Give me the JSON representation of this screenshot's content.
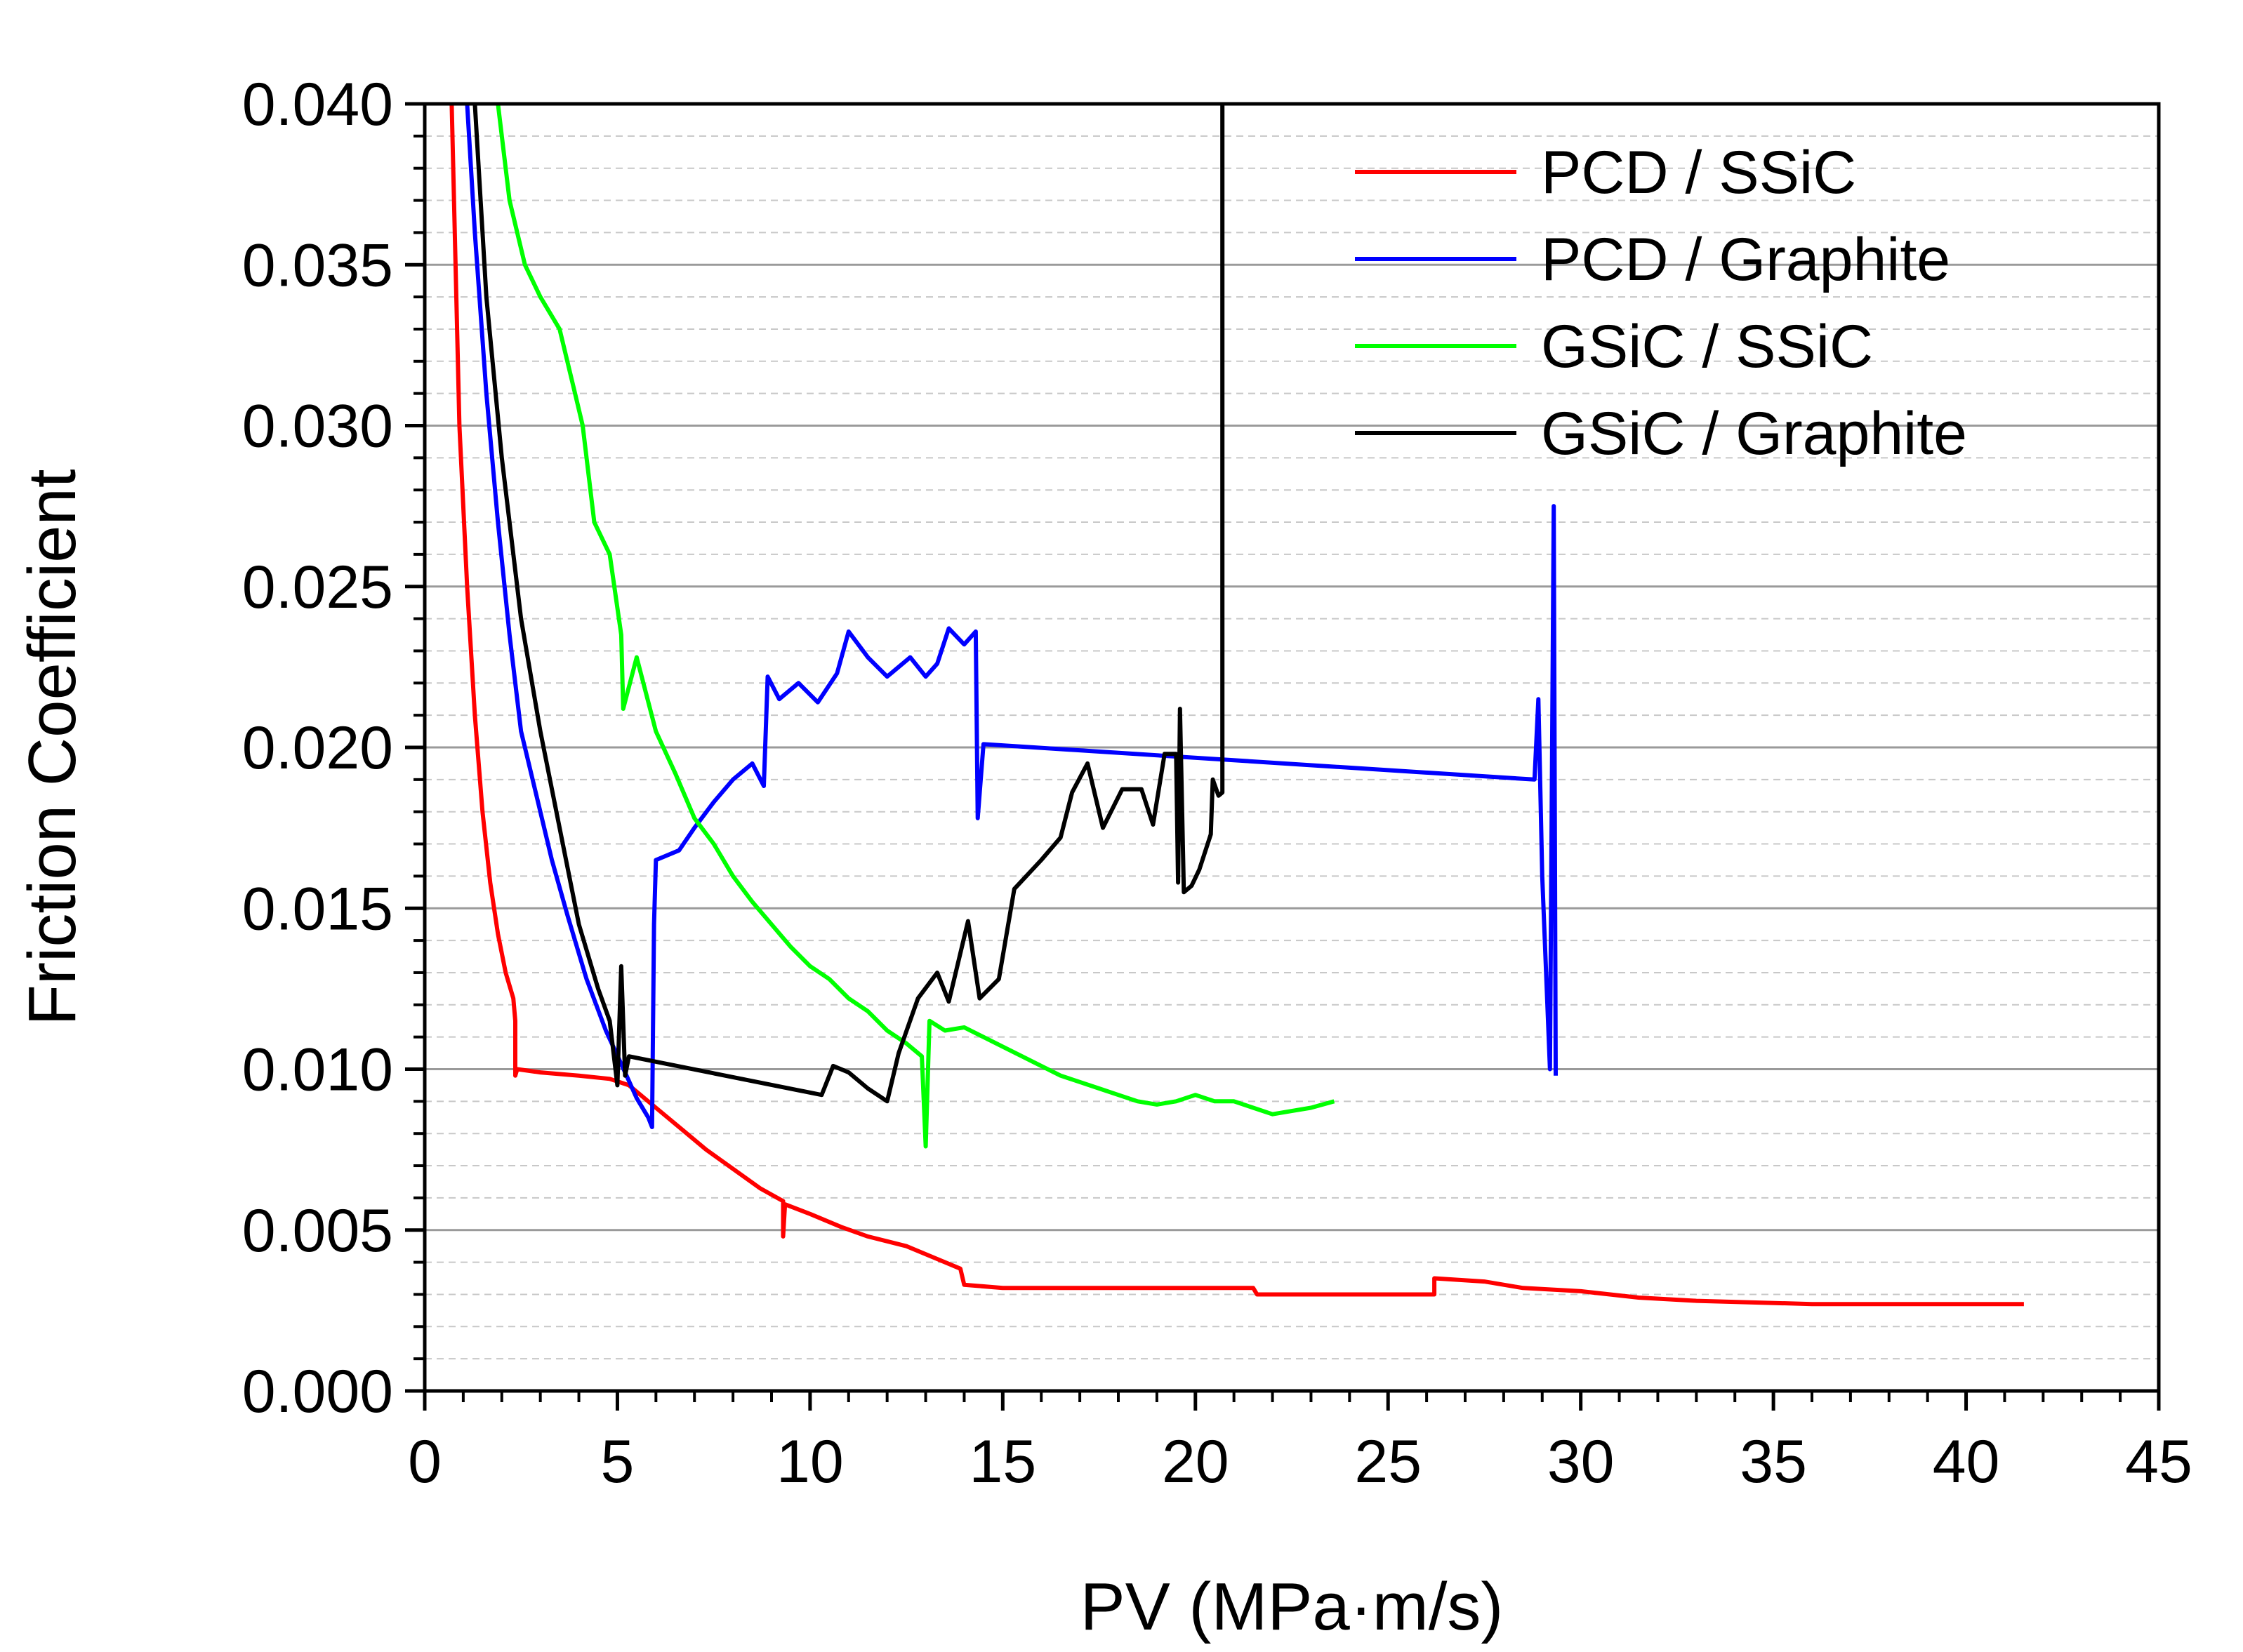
{
  "chart_data": {
    "type": "line",
    "title": "",
    "xlabel": "PV (MPa·m/s)",
    "ylabel": "Friction Coefficient",
    "xlim": [
      0,
      45
    ],
    "ylim": [
      0,
      0.04
    ],
    "x_ticks": [
      "0",
      "5",
      "10",
      "15",
      "20",
      "25",
      "30",
      "35",
      "40",
      "45"
    ],
    "y_ticks": [
      "0.000",
      "0.005",
      "0.010",
      "0.015",
      "0.020",
      "0.025",
      "0.030",
      "0.035",
      "0.040"
    ],
    "grid": true,
    "legend_position": "top-right",
    "series": [
      {
        "name": "PCD / SSiC",
        "color": "#ff0000",
        "points": [
          [
            0.7,
            0.04
          ],
          [
            0.9,
            0.03
          ],
          [
            1.1,
            0.025
          ],
          [
            1.3,
            0.021
          ],
          [
            1.5,
            0.018
          ],
          [
            1.7,
            0.0158
          ],
          [
            1.9,
            0.0142
          ],
          [
            2.1,
            0.013
          ],
          [
            2.3,
            0.0122
          ],
          [
            2.35,
            0.0115
          ],
          [
            2.35,
            0.0098
          ],
          [
            2.4,
            0.01
          ],
          [
            3.0,
            0.0099
          ],
          [
            4.0,
            0.0098
          ],
          [
            4.8,
            0.0097
          ],
          [
            5.3,
            0.0095
          ],
          [
            6.0,
            0.0088
          ],
          [
            6.7,
            0.0081
          ],
          [
            7.3,
            0.0075
          ],
          [
            8.0,
            0.0069
          ],
          [
            8.7,
            0.0063
          ],
          [
            9.3,
            0.0059
          ],
          [
            9.3,
            0.0048
          ],
          [
            9.35,
            0.0058
          ],
          [
            10.0,
            0.0055
          ],
          [
            10.8,
            0.0051
          ],
          [
            11.5,
            0.0048
          ],
          [
            12.5,
            0.0045
          ],
          [
            13.3,
            0.0041
          ],
          [
            13.9,
            0.0038
          ],
          [
            14.0,
            0.0033
          ],
          [
            15.0,
            0.0032
          ],
          [
            17.0,
            0.0032
          ],
          [
            21.5,
            0.0032
          ],
          [
            21.6,
            0.003
          ],
          [
            26.2,
            0.003
          ],
          [
            26.2,
            0.0035
          ],
          [
            27.5,
            0.0034
          ],
          [
            28.5,
            0.0032
          ],
          [
            30.0,
            0.0031
          ],
          [
            31.5,
            0.0029
          ],
          [
            33.0,
            0.0028
          ],
          [
            36.0,
            0.0027
          ],
          [
            41.5,
            0.0027
          ]
        ]
      },
      {
        "name": "PCD / Graphite",
        "color": "#0000ff",
        "points": [
          [
            1.1,
            0.04
          ],
          [
            1.3,
            0.036
          ],
          [
            1.6,
            0.031
          ],
          [
            1.9,
            0.027
          ],
          [
            2.2,
            0.0235
          ],
          [
            2.5,
            0.0205
          ],
          [
            2.9,
            0.0185
          ],
          [
            3.3,
            0.0165
          ],
          [
            3.7,
            0.0148
          ],
          [
            4.2,
            0.0128
          ],
          [
            4.7,
            0.0112
          ],
          [
            5.2,
            0.0099
          ],
          [
            5.5,
            0.0091
          ],
          [
            5.8,
            0.0085
          ],
          [
            5.9,
            0.0082
          ],
          [
            5.95,
            0.0145
          ],
          [
            6.0,
            0.0165
          ],
          [
            6.6,
            0.0168
          ],
          [
            7.0,
            0.0175
          ],
          [
            7.5,
            0.0183
          ],
          [
            8.0,
            0.019
          ],
          [
            8.5,
            0.0195
          ],
          [
            8.8,
            0.0188
          ],
          [
            8.9,
            0.0222
          ],
          [
            9.2,
            0.0215
          ],
          [
            9.7,
            0.022
          ],
          [
            10.2,
            0.0214
          ],
          [
            10.7,
            0.0223
          ],
          [
            11.0,
            0.0236
          ],
          [
            11.5,
            0.0228
          ],
          [
            12.0,
            0.0222
          ],
          [
            12.6,
            0.0228
          ],
          [
            13.0,
            0.0222
          ],
          [
            13.3,
            0.0226
          ],
          [
            13.6,
            0.0237
          ],
          [
            14.0,
            0.0232
          ],
          [
            14.3,
            0.0236
          ],
          [
            14.35,
            0.0178
          ],
          [
            14.5,
            0.0201
          ],
          [
            28.8,
            0.019
          ],
          [
            28.9,
            0.0215
          ],
          [
            29.0,
            0.016
          ],
          [
            29.2,
            0.01
          ],
          [
            29.3,
            0.0275
          ],
          [
            29.35,
            0.0098
          ]
        ]
      },
      {
        "name": "GSiC / SSiC",
        "color": "#00ff00",
        "points": [
          [
            1.9,
            0.04
          ],
          [
            2.2,
            0.037
          ],
          [
            2.6,
            0.035
          ],
          [
            3.0,
            0.034
          ],
          [
            3.5,
            0.033
          ],
          [
            3.9,
            0.031
          ],
          [
            4.1,
            0.03
          ],
          [
            4.4,
            0.027
          ],
          [
            4.8,
            0.026
          ],
          [
            5.1,
            0.0235
          ],
          [
            5.15,
            0.0212
          ],
          [
            5.5,
            0.0228
          ],
          [
            6.0,
            0.0205
          ],
          [
            6.5,
            0.0192
          ],
          [
            7.0,
            0.0178
          ],
          [
            7.5,
            0.017
          ],
          [
            8.0,
            0.016
          ],
          [
            8.5,
            0.0152
          ],
          [
            9.0,
            0.0145
          ],
          [
            9.5,
            0.0138
          ],
          [
            10.0,
            0.0132
          ],
          [
            10.5,
            0.0128
          ],
          [
            11.0,
            0.0122
          ],
          [
            11.5,
            0.0118
          ],
          [
            12.0,
            0.0112
          ],
          [
            12.5,
            0.0108
          ],
          [
            12.9,
            0.0104
          ],
          [
            13.0,
            0.0076
          ],
          [
            13.1,
            0.0115
          ],
          [
            13.5,
            0.0112
          ],
          [
            14.0,
            0.0113
          ],
          [
            14.5,
            0.011
          ],
          [
            15.0,
            0.0107
          ],
          [
            15.5,
            0.0104
          ],
          [
            16.0,
            0.0101
          ],
          [
            16.5,
            0.0098
          ],
          [
            17.0,
            0.0096
          ],
          [
            17.5,
            0.0094
          ],
          [
            18.0,
            0.0092
          ],
          [
            18.5,
            0.009
          ],
          [
            19.0,
            0.0089
          ],
          [
            19.5,
            0.009
          ],
          [
            20.0,
            0.0092
          ],
          [
            20.5,
            0.009
          ],
          [
            21.0,
            0.009
          ],
          [
            21.5,
            0.0088
          ],
          [
            22.0,
            0.0086
          ],
          [
            22.5,
            0.0087
          ],
          [
            23.0,
            0.0088
          ],
          [
            23.6,
            0.009
          ]
        ]
      },
      {
        "name": "GSiC / Graphite",
        "color": "#000000",
        "points": [
          [
            1.3,
            0.04
          ],
          [
            1.6,
            0.034
          ],
          [
            2.0,
            0.029
          ],
          [
            2.5,
            0.024
          ],
          [
            3.0,
            0.0205
          ],
          [
            3.5,
            0.0175
          ],
          [
            4.0,
            0.0145
          ],
          [
            4.5,
            0.0125
          ],
          [
            4.8,
            0.0115
          ],
          [
            5.0,
            0.0095
          ],
          [
            5.1,
            0.0132
          ],
          [
            5.2,
            0.0098
          ],
          [
            5.3,
            0.0104
          ],
          [
            10.3,
            0.0092
          ],
          [
            10.6,
            0.0101
          ],
          [
            11.0,
            0.0099
          ],
          [
            11.5,
            0.0094
          ],
          [
            12.0,
            0.009
          ],
          [
            12.3,
            0.0105
          ],
          [
            12.8,
            0.0122
          ],
          [
            13.3,
            0.013
          ],
          [
            13.6,
            0.0121
          ],
          [
            14.1,
            0.0146
          ],
          [
            14.4,
            0.0122
          ],
          [
            14.9,
            0.0128
          ],
          [
            15.3,
            0.0156
          ],
          [
            16.0,
            0.0165
          ],
          [
            16.5,
            0.0172
          ],
          [
            16.8,
            0.0186
          ],
          [
            17.2,
            0.0195
          ],
          [
            17.6,
            0.0175
          ],
          [
            18.1,
            0.0187
          ],
          [
            18.6,
            0.0187
          ],
          [
            18.9,
            0.0176
          ],
          [
            19.2,
            0.0198
          ],
          [
            19.5,
            0.0198
          ],
          [
            19.55,
            0.0158
          ],
          [
            19.6,
            0.0212
          ],
          [
            19.7,
            0.0155
          ],
          [
            19.9,
            0.0157
          ],
          [
            20.1,
            0.0162
          ],
          [
            20.4,
            0.0173
          ],
          [
            20.45,
            0.019
          ],
          [
            20.6,
            0.0185
          ],
          [
            20.7,
            0.0186
          ],
          [
            20.7,
            0.04
          ]
        ]
      }
    ]
  }
}
